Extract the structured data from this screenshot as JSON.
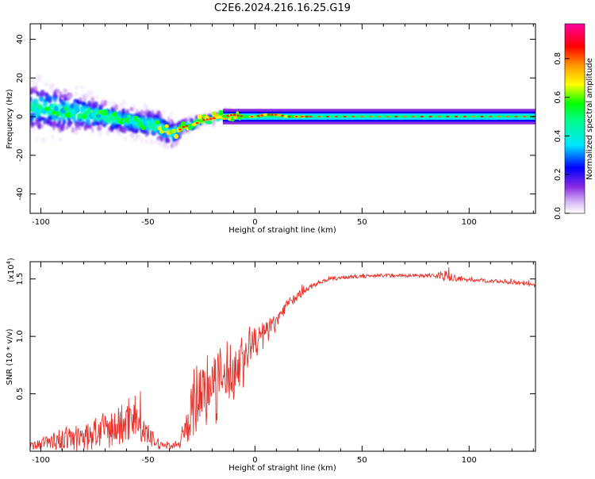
{
  "figure_title": "C2E6.2024.216.16.25.G19",
  "chart_data": [
    {
      "type": "heatmap",
      "title": "",
      "xlabel": "Height of straight line (km)",
      "ylabel": "Frequency (Hz)",
      "xlim": [
        -105,
        131
      ],
      "ylim": [
        -50,
        48
      ],
      "xticks": [
        -100,
        -50,
        0,
        50,
        100
      ],
      "yticks": [
        -40,
        -20,
        0,
        20,
        40
      ],
      "colorbar": {
        "label": "Normalized spectral amplitude",
        "range": [
          0,
          0.98
        ],
        "ticks": [
          "0.0",
          "0.2",
          "0.4",
          "0.6",
          "0.8"
        ],
        "colormap": "rainbow (white-purple-blue-cyan-green-yellow-red-magenta)"
      },
      "ridge": {
        "description": "Dominant frequency ridge vs height",
        "x": [
          -105,
          -95,
          -85,
          -75,
          -65,
          -55,
          -45,
          -38,
          -33,
          -28,
          -25,
          -20,
          -15,
          -10,
          -5,
          0,
          5,
          10,
          15,
          20,
          40,
          60,
          80,
          100,
          131
        ],
        "y": [
          5,
          4,
          2,
          1,
          -1,
          -3,
          -5,
          -9,
          -5,
          -4,
          -2,
          -1,
          0,
          1,
          0,
          0,
          1,
          1,
          0,
          0,
          0,
          0,
          0,
          0,
          0
        ],
        "spread_hz": [
          18,
          16,
          15,
          12,
          10,
          10,
          12,
          10,
          5,
          5,
          4,
          4,
          4,
          4,
          3,
          3,
          3,
          3,
          3,
          3,
          3,
          3,
          3,
          3,
          3
        ]
      }
    },
    {
      "type": "line",
      "title": "",
      "xlabel": "Height of straight line (km)",
      "ylabel": "SNR (10 * v/v)",
      "y_scale_label": "(x10",
      "y_scale_exp": "4",
      "y_scale_close": ")",
      "xlim": [
        -105,
        131
      ],
      "ylim": [
        0,
        1.65
      ],
      "xticks": [
        -100,
        -50,
        0,
        50,
        100
      ],
      "yticks": [
        "0.5",
        "1.0",
        "1.5"
      ],
      "ytick_values": [
        0.5,
        1.0,
        1.5
      ],
      "series": [
        {
          "color": "#e8302a",
          "x": [
            -105,
            -100,
            -95,
            -90,
            -85,
            -80,
            -75,
            -70,
            -65,
            -60,
            -57,
            -55,
            -50,
            -45,
            -40,
            -35,
            -32,
            -30,
            -28,
            -25,
            -22,
            -20,
            -18,
            -15,
            -12,
            -10,
            -8,
            -5,
            -3,
            0,
            3,
            5,
            8,
            10,
            12,
            15,
            20,
            25,
            30,
            35,
            40,
            45,
            50,
            55,
            60,
            65,
            70,
            75,
            80,
            85,
            88,
            90,
            95,
            100,
            105,
            110,
            115,
            120,
            125,
            131
          ],
          "y": [
            0.04,
            0.07,
            0.09,
            0.1,
            0.12,
            0.1,
            0.16,
            0.18,
            0.2,
            0.25,
            0.36,
            0.24,
            0.14,
            0.06,
            0.05,
            0.06,
            0.2,
            0.35,
            0.45,
            0.5,
            0.55,
            0.6,
            0.55,
            0.65,
            0.7,
            0.68,
            0.76,
            0.8,
            0.9,
            0.95,
            1.0,
            1.02,
            1.1,
            1.12,
            1.2,
            1.28,
            1.35,
            1.42,
            1.47,
            1.5,
            1.51,
            1.52,
            1.52,
            1.53,
            1.53,
            1.53,
            1.53,
            1.53,
            1.53,
            1.53,
            1.54,
            1.52,
            1.5,
            1.49,
            1.49,
            1.48,
            1.48,
            1.47,
            1.46,
            1.44
          ],
          "noise_amplitude": [
            0.04,
            0.06,
            0.1,
            0.12,
            0.14,
            0.16,
            0.18,
            0.2,
            0.22,
            0.25,
            0.3,
            0.22,
            0.12,
            0.06,
            0.04,
            0.05,
            0.2,
            0.3,
            0.4,
            0.4,
            0.4,
            0.4,
            0.4,
            0.35,
            0.35,
            0.35,
            0.3,
            0.3,
            0.25,
            0.2,
            0.18,
            0.15,
            0.12,
            0.1,
            0.08,
            0.06,
            0.05,
            0.03,
            0.02,
            0.02,
            0.02,
            0.02,
            0.02,
            0.02,
            0.02,
            0.02,
            0.02,
            0.02,
            0.02,
            0.03,
            0.08,
            0.05,
            0.03,
            0.02,
            0.02,
            0.02,
            0.02,
            0.02,
            0.02,
            0.02
          ]
        }
      ]
    }
  ]
}
